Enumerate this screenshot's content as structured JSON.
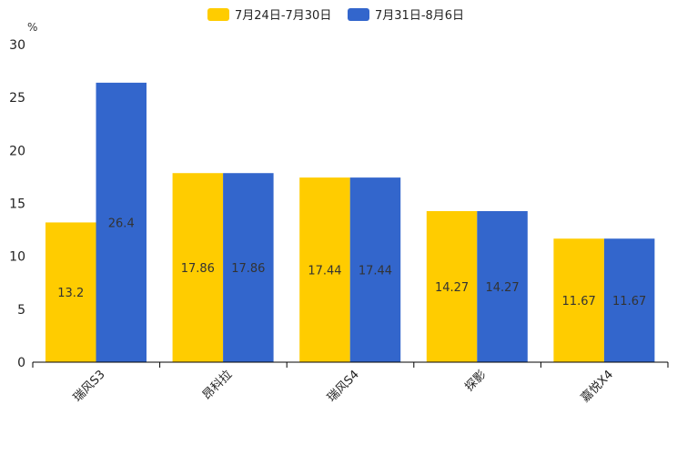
{
  "chart_data": {
    "type": "bar",
    "unit_label": "%",
    "categories": [
      "瑞风S3",
      "昂科拉",
      "瑞风S4",
      "探影",
      "嘉悦X4"
    ],
    "series": [
      {
        "name": "7月24日-7月30日",
        "color": "#FFCC00",
        "values": [
          13.2,
          17.86,
          17.44,
          14.27,
          11.67
        ]
      },
      {
        "name": "7月31日-8月6日",
        "color": "#3366CC",
        "values": [
          26.4,
          17.86,
          17.44,
          14.27,
          11.67
        ]
      }
    ],
    "ylim": [
      0,
      30
    ],
    "yticks": [
      0,
      5,
      10,
      15,
      20,
      25,
      30
    ],
    "legend": "top-center",
    "grid": false
  }
}
